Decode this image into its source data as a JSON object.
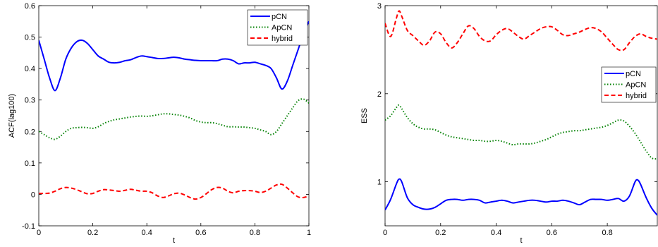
{
  "chart_data": [
    {
      "type": "line",
      "title": "",
      "xlabel": "t",
      "ylabel": "ACF(lag100)",
      "xlim": [
        0,
        1
      ],
      "ylim": [
        -0.1,
        0.6
      ],
      "xticks": [
        "0",
        "0.2",
        "0.4",
        "0.6",
        "0.8",
        "1"
      ],
      "xtick_values": [
        0,
        0.2,
        0.4,
        0.6,
        0.8,
        1
      ],
      "yticks": [
        "-0.1",
        "0",
        "0.1",
        "0.2",
        "0.3",
        "0.4",
        "0.5",
        "0.6"
      ],
      "ytick_values": [
        -0.1,
        0,
        0.1,
        0.2,
        0.3,
        0.4,
        0.5,
        0.6
      ],
      "grid": false,
      "legend_position": "top-right",
      "series": [
        {
          "name": "pCN",
          "color": "#0000ff",
          "style": "solid",
          "x": [
            0,
            0.02,
            0.04,
            0.06,
            0.08,
            0.1,
            0.12,
            0.14,
            0.16,
            0.18,
            0.2,
            0.22,
            0.24,
            0.26,
            0.28,
            0.3,
            0.32,
            0.34,
            0.36,
            0.38,
            0.4,
            0.42,
            0.44,
            0.46,
            0.48,
            0.5,
            0.52,
            0.54,
            0.56,
            0.58,
            0.6,
            0.62,
            0.64,
            0.66,
            0.68,
            0.7,
            0.72,
            0.74,
            0.76,
            0.78,
            0.8,
            0.82,
            0.84,
            0.86,
            0.88,
            0.9,
            0.92,
            0.94,
            0.96,
            0.98,
            1
          ],
          "y": [
            0.49,
            0.43,
            0.37,
            0.33,
            0.37,
            0.43,
            0.465,
            0.485,
            0.49,
            0.48,
            0.46,
            0.44,
            0.43,
            0.42,
            0.418,
            0.42,
            0.425,
            0.428,
            0.435,
            0.44,
            0.438,
            0.435,
            0.432,
            0.432,
            0.434,
            0.436,
            0.434,
            0.43,
            0.428,
            0.426,
            0.425,
            0.425,
            0.425,
            0.425,
            0.43,
            0.43,
            0.425,
            0.415,
            0.418,
            0.418,
            0.42,
            0.415,
            0.41,
            0.4,
            0.37,
            0.335,
            0.36,
            0.41,
            0.46,
            0.51,
            0.55
          ]
        },
        {
          "name": "ApCN",
          "color": "#008000",
          "style": "dotted",
          "x": [
            0,
            0.02,
            0.04,
            0.06,
            0.08,
            0.1,
            0.12,
            0.14,
            0.16,
            0.18,
            0.2,
            0.22,
            0.24,
            0.26,
            0.28,
            0.3,
            0.32,
            0.34,
            0.36,
            0.38,
            0.4,
            0.42,
            0.44,
            0.46,
            0.48,
            0.5,
            0.52,
            0.54,
            0.56,
            0.58,
            0.6,
            0.62,
            0.64,
            0.66,
            0.68,
            0.7,
            0.72,
            0.74,
            0.76,
            0.78,
            0.8,
            0.82,
            0.84,
            0.86,
            0.88,
            0.9,
            0.92,
            0.94,
            0.96,
            0.98,
            1
          ],
          "y": [
            0.2,
            0.19,
            0.18,
            0.175,
            0.185,
            0.2,
            0.21,
            0.212,
            0.213,
            0.212,
            0.21,
            0.215,
            0.225,
            0.232,
            0.237,
            0.24,
            0.243,
            0.246,
            0.248,
            0.249,
            0.248,
            0.25,
            0.253,
            0.256,
            0.256,
            0.254,
            0.252,
            0.248,
            0.243,
            0.235,
            0.23,
            0.228,
            0.228,
            0.225,
            0.22,
            0.215,
            0.215,
            0.214,
            0.214,
            0.212,
            0.21,
            0.205,
            0.2,
            0.19,
            0.2,
            0.225,
            0.25,
            0.275,
            0.298,
            0.303,
            0.29
          ]
        },
        {
          "name": "hybrid",
          "color": "#ff0000",
          "style": "dashed",
          "x": [
            0,
            0.02,
            0.04,
            0.06,
            0.08,
            0.1,
            0.12,
            0.14,
            0.16,
            0.18,
            0.2,
            0.22,
            0.24,
            0.26,
            0.28,
            0.3,
            0.32,
            0.34,
            0.36,
            0.38,
            0.4,
            0.42,
            0.44,
            0.46,
            0.48,
            0.5,
            0.52,
            0.54,
            0.56,
            0.58,
            0.6,
            0.62,
            0.64,
            0.66,
            0.68,
            0.7,
            0.72,
            0.74,
            0.76,
            0.78,
            0.8,
            0.82,
            0.84,
            0.86,
            0.88,
            0.9,
            0.92,
            0.94,
            0.96,
            0.98,
            1
          ],
          "y": [
            0.003,
            0.003,
            0.004,
            0.01,
            0.018,
            0.022,
            0.02,
            0.015,
            0.008,
            0.002,
            0.003,
            0.01,
            0.015,
            0.014,
            0.012,
            0.01,
            0.013,
            0.016,
            0.013,
            0.01,
            0.01,
            0.005,
            -0.005,
            -0.01,
            -0.005,
            0.002,
            0.004,
            -0.002,
            -0.01,
            -0.015,
            -0.01,
            0.002,
            0.015,
            0.022,
            0.02,
            0.01,
            0.005,
            0.01,
            0.012,
            0.012,
            0.01,
            0.006,
            0.01,
            0.02,
            0.03,
            0.032,
            0.02,
            0.005,
            -0.008,
            -0.01,
            -0.005
          ]
        }
      ]
    },
    {
      "type": "line",
      "title": "",
      "xlabel": "t",
      "ylabel": "ESS",
      "xlim": [
        0,
        0.98
      ],
      "ylim": [
        0.5,
        3
      ],
      "xticks": [
        "0",
        "0.2",
        "0.4",
        "0.6",
        "0.8"
      ],
      "xtick_values": [
        0,
        0.2,
        0.4,
        0.6,
        0.8
      ],
      "yticks": [
        "1",
        "2",
        "3"
      ],
      "ytick_values": [
        1,
        2,
        3
      ],
      "grid": false,
      "legend_position": "right",
      "series": [
        {
          "name": "pCN",
          "color": "#0000ff",
          "style": "solid",
          "x": [
            0,
            0.02,
            0.04,
            0.05,
            0.06,
            0.08,
            0.1,
            0.12,
            0.14,
            0.16,
            0.18,
            0.2,
            0.22,
            0.24,
            0.26,
            0.28,
            0.3,
            0.32,
            0.34,
            0.36,
            0.38,
            0.4,
            0.42,
            0.44,
            0.46,
            0.48,
            0.5,
            0.52,
            0.54,
            0.56,
            0.58,
            0.6,
            0.62,
            0.64,
            0.66,
            0.68,
            0.7,
            0.72,
            0.74,
            0.76,
            0.78,
            0.8,
            0.82,
            0.84,
            0.86,
            0.88,
            0.9,
            0.91,
            0.92,
            0.94,
            0.96,
            0.98
          ],
          "y": [
            0.68,
            0.8,
            0.97,
            1.03,
            1.0,
            0.82,
            0.74,
            0.71,
            0.69,
            0.69,
            0.71,
            0.75,
            0.79,
            0.8,
            0.8,
            0.79,
            0.8,
            0.8,
            0.79,
            0.76,
            0.77,
            0.78,
            0.79,
            0.78,
            0.76,
            0.77,
            0.78,
            0.79,
            0.79,
            0.78,
            0.77,
            0.78,
            0.78,
            0.79,
            0.78,
            0.76,
            0.74,
            0.77,
            0.8,
            0.8,
            0.8,
            0.79,
            0.8,
            0.81,
            0.78,
            0.84,
            1.0,
            1.02,
            0.97,
            0.82,
            0.7,
            0.62
          ]
        },
        {
          "name": "ApCN",
          "color": "#008000",
          "style": "dotted",
          "x": [
            0,
            0.02,
            0.04,
            0.05,
            0.06,
            0.08,
            0.1,
            0.12,
            0.14,
            0.16,
            0.18,
            0.2,
            0.22,
            0.24,
            0.26,
            0.28,
            0.3,
            0.32,
            0.34,
            0.36,
            0.38,
            0.4,
            0.42,
            0.44,
            0.46,
            0.48,
            0.5,
            0.52,
            0.54,
            0.56,
            0.58,
            0.6,
            0.62,
            0.64,
            0.66,
            0.68,
            0.7,
            0.72,
            0.74,
            0.76,
            0.78,
            0.8,
            0.82,
            0.84,
            0.86,
            0.88,
            0.9,
            0.92,
            0.94,
            0.96,
            0.98
          ],
          "y": [
            1.7,
            1.75,
            1.84,
            1.87,
            1.83,
            1.73,
            1.66,
            1.62,
            1.6,
            1.6,
            1.59,
            1.56,
            1.53,
            1.51,
            1.5,
            1.49,
            1.48,
            1.47,
            1.47,
            1.46,
            1.46,
            1.47,
            1.46,
            1.44,
            1.42,
            1.43,
            1.43,
            1.43,
            1.44,
            1.46,
            1.48,
            1.51,
            1.54,
            1.56,
            1.57,
            1.58,
            1.58,
            1.59,
            1.6,
            1.61,
            1.62,
            1.64,
            1.67,
            1.7,
            1.69,
            1.63,
            1.55,
            1.45,
            1.35,
            1.27,
            1.26
          ]
        },
        {
          "name": "hybrid",
          "color": "#ff0000",
          "style": "dashed",
          "x": [
            0,
            0.02,
            0.04,
            0.05,
            0.06,
            0.08,
            0.1,
            0.12,
            0.14,
            0.16,
            0.18,
            0.2,
            0.22,
            0.24,
            0.26,
            0.28,
            0.3,
            0.32,
            0.34,
            0.36,
            0.38,
            0.4,
            0.42,
            0.44,
            0.46,
            0.48,
            0.5,
            0.52,
            0.54,
            0.56,
            0.58,
            0.6,
            0.62,
            0.64,
            0.66,
            0.68,
            0.7,
            0.72,
            0.74,
            0.76,
            0.78,
            0.8,
            0.82,
            0.84,
            0.86,
            0.88,
            0.9,
            0.92,
            0.94,
            0.96,
            0.98
          ],
          "y": [
            2.8,
            2.65,
            2.85,
            2.94,
            2.88,
            2.72,
            2.66,
            2.6,
            2.55,
            2.6,
            2.7,
            2.68,
            2.58,
            2.52,
            2.58,
            2.68,
            2.77,
            2.74,
            2.65,
            2.6,
            2.6,
            2.67,
            2.72,
            2.74,
            2.7,
            2.65,
            2.62,
            2.66,
            2.7,
            2.74,
            2.76,
            2.76,
            2.72,
            2.67,
            2.66,
            2.68,
            2.7,
            2.73,
            2.75,
            2.74,
            2.7,
            2.63,
            2.56,
            2.5,
            2.5,
            2.58,
            2.65,
            2.68,
            2.65,
            2.63,
            2.62
          ]
        }
      ]
    }
  ]
}
